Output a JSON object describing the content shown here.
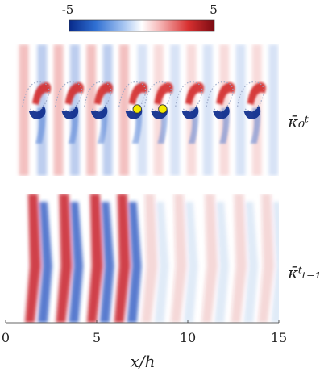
{
  "chart_data": [
    {
      "type": "heatmap",
      "title": "",
      "panel_label": "κ̄₀ᵗ",
      "colorbar": {
        "min_label": "-5",
        "max_label": "5",
        "range": [
          -5,
          5
        ],
        "colors": [
          "#082a8a",
          "#2f6fd2",
          "#a9c7f2",
          "#ffffff",
          "#f6b8b8",
          "#d83030",
          "#7a0a12"
        ]
      },
      "xlim": [
        0,
        15
      ],
      "features": {
        "vortex_count": 8,
        "vortex_x": [
          1.9,
          3.7,
          5.3,
          7.2,
          8.6,
          10.3,
          12.0,
          13.7
        ],
        "highlight_points": [
          {
            "x": 7.2,
            "label": ""
          },
          {
            "x": 8.6,
            "label": ""
          }
        ],
        "highlight_color": "#f4ea00"
      }
    },
    {
      "type": "heatmap",
      "panel_label": "κ̄ᵗₜ₋₁",
      "xlim": [
        0,
        15
      ],
      "features": {
        "band_x": [
          1.5,
          3.2,
          4.9,
          6.4,
          7.9,
          9.5,
          11.2,
          12.8,
          14.3
        ]
      },
      "xticks": [
        0,
        5,
        10,
        15
      ],
      "xtick_labels": [
        "0",
        "5",
        "10",
        "15"
      ],
      "xlabel": "x/h"
    }
  ],
  "labels": {
    "cb_min": "-5",
    "cb_max": "5",
    "xlabel": "x/h",
    "panel_top": "κ̄₀ᵗ",
    "panel_bottom": "κ̄ᵗₜ₋₁"
  }
}
